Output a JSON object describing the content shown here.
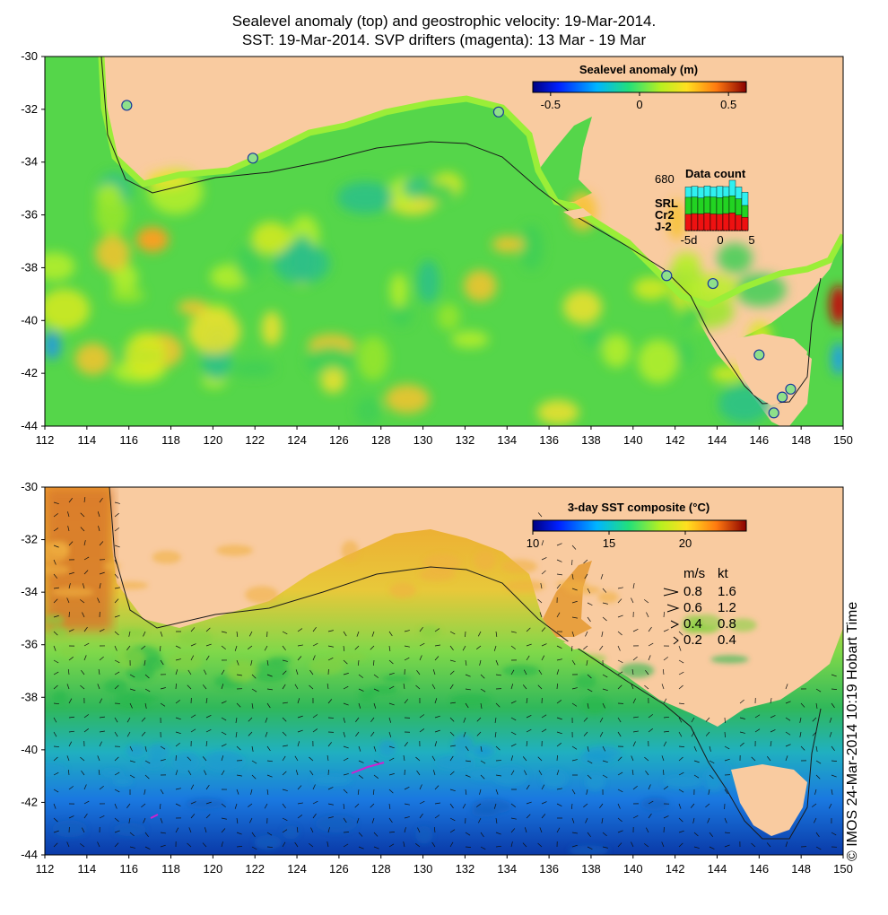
{
  "title": {
    "line1": "Sealevel anomaly (top) and geostrophic velocity: 19-Mar-2014.",
    "line2": "SST: 19-Mar-2014. SVP drifters (magenta): 13 Mar - 19 Mar"
  },
  "colors": {
    "land": "#f9cba0",
    "sla_background": "#55d64a",
    "coast_band": "#9aee38",
    "isobath": "#1a1a1a"
  },
  "top_map": {
    "x_ticks": [
      "112",
      "114",
      "116",
      "118",
      "120",
      "122",
      "124",
      "126",
      "128",
      "130",
      "132",
      "134",
      "136",
      "138",
      "140",
      "142",
      "144",
      "146",
      "148",
      "150"
    ],
    "y_ticks": [
      "-30",
      "-32",
      "-34",
      "-36",
      "-38",
      "-40",
      "-42",
      "-44"
    ],
    "colorbar": {
      "title": "Sealevel anomaly (m)",
      "range": [
        -0.6,
        0.6
      ],
      "tick_labels": [
        "-0.5",
        "0",
        "0.5"
      ],
      "tick_values": [
        -0.5,
        0,
        0.5
      ]
    },
    "data_count": {
      "title": "Data count",
      "max_label": "680",
      "legend": [
        "SRL",
        "Cr2",
        "J-2"
      ],
      "legend_colors": [
        "#2ff0f0",
        "#22d322",
        "#ee1111"
      ],
      "axis_labels": [
        "-5d",
        "0",
        "5"
      ],
      "bars": [
        {
          "day": -5,
          "srl": 590,
          "cr2": 450,
          "j2": 220
        },
        {
          "day": -4,
          "srl": 600,
          "cr2": 455,
          "j2": 230
        },
        {
          "day": -3,
          "srl": 585,
          "cr2": 440,
          "j2": 225
        },
        {
          "day": -2,
          "srl": 605,
          "cr2": 460,
          "j2": 235
        },
        {
          "day": -1,
          "srl": 590,
          "cr2": 455,
          "j2": 225
        },
        {
          "day": 0,
          "srl": 600,
          "cr2": 445,
          "j2": 220
        },
        {
          "day": 1,
          "srl": 595,
          "cr2": 460,
          "j2": 230
        },
        {
          "day": 2,
          "srl": 680,
          "cr2": 470,
          "j2": 240
        },
        {
          "day": 3,
          "srl": 590,
          "cr2": 430,
          "j2": 210
        },
        {
          "day": 4,
          "srl": 520,
          "cr2": 340,
          "j2": 180
        }
      ]
    },
    "tide_gauges": [
      {
        "lon": 115.9,
        "lat": -31.85
      },
      {
        "lon": 121.9,
        "lat": -33.85
      },
      {
        "lon": 133.6,
        "lat": -32.1
      },
      {
        "lon": 141.6,
        "lat": -38.3
      },
      {
        "lon": 143.8,
        "lat": -38.6
      },
      {
        "lon": 146.0,
        "lat": -41.3
      },
      {
        "lon": 147.1,
        "lat": -42.9
      },
      {
        "lon": 147.5,
        "lat": -42.6
      },
      {
        "lon": 146.7,
        "lat": -43.5
      }
    ]
  },
  "bottom_map": {
    "x_ticks": [
      "112",
      "114",
      "116",
      "118",
      "120",
      "122",
      "124",
      "126",
      "128",
      "130",
      "132",
      "134",
      "136",
      "138",
      "140",
      "142",
      "144",
      "146",
      "148",
      "150"
    ],
    "y_ticks": [
      "-30",
      "-32",
      "-34",
      "-36",
      "-38",
      "-40",
      "-42",
      "-44"
    ],
    "colorbar": {
      "title": "3-day SST composite (°C)",
      "range": [
        10,
        24
      ],
      "tick_labels": [
        "10",
        "15",
        "20"
      ],
      "tick_values": [
        10,
        15,
        20
      ]
    },
    "velocity_key": {
      "header_ms": "m/s",
      "header_kt": "kt",
      "rows": [
        {
          "ms": "0.8",
          "kt": "1.6"
        },
        {
          "ms": "0.6",
          "kt": "1.2"
        },
        {
          "ms": "0.4",
          "kt": "0.8"
        },
        {
          "ms": "0.2",
          "kt": "0.4"
        }
      ]
    }
  },
  "copyright": "© IMOS 24-Mar-2014 10:19 Hobart Time"
}
